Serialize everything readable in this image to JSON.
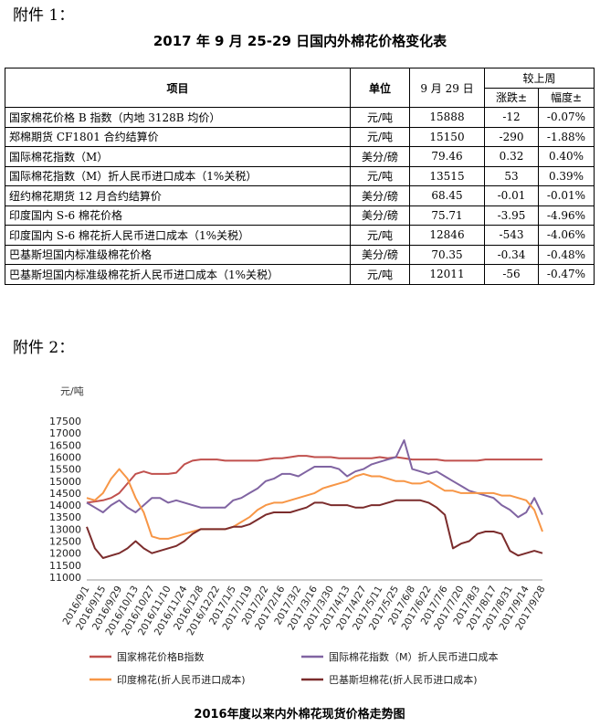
{
  "header1": "附件 1：",
  "table": {
    "title": "2017 年 9 月 25-29 日国内外棉花价格变化表",
    "head": {
      "item": "项目",
      "unit": "单位",
      "date": "9 月 29 日",
      "group": "较上周",
      "change": "涨跌±",
      "pct": "幅度±"
    },
    "rows": [
      [
        "国家棉花价格 B 指数（内地 3128B 均价）",
        "元/吨",
        "15888",
        "-12",
        "-0.07%"
      ],
      [
        "郑棉期货 CF1801 合约结算价",
        "元/吨",
        "15150",
        "-290",
        "-1.88%"
      ],
      [
        "国际棉花指数（M）",
        "美分/磅",
        "79.46",
        "0.32",
        "0.40%"
      ],
      [
        "国际棉花指数（M）折人民币进口成本（1%关税）",
        "元/吨",
        "13515",
        "53",
        "0.39%"
      ],
      [
        "纽约棉花期货 12 月合约结算价",
        "美分/磅",
        "68.45",
        "-0.01",
        "-0.01%"
      ],
      [
        "印度国内 S-6 棉花价格",
        "美分/磅",
        "75.71",
        "-3.95",
        "-4.96%"
      ],
      [
        "印度国内 S-6 棉花折人民币进口成本（1%关税）",
        "元/吨",
        "12846",
        "-543",
        "-4.06%"
      ],
      [
        "巴基斯坦国内标准级棉花价格",
        "美分/磅",
        "70.35",
        "-0.34",
        "-0.48%"
      ],
      [
        "巴基斯坦国内标准级棉花折人民币进口成本（1%关税）",
        "元/吨",
        "12011",
        "-56",
        "-0.47%"
      ]
    ]
  },
  "header2": "附件 2：",
  "chart_data": {
    "type": "line",
    "title": "2016年度以来内外棉花现货价格走势图",
    "y_label": "元/吨",
    "ylim": [
      11000,
      17500
    ],
    "yticks": [
      11000,
      11500,
      12000,
      12500,
      13000,
      13500,
      14000,
      14500,
      15000,
      15500,
      16000,
      16500,
      17000,
      17500
    ],
    "grid": false,
    "categories": [
      "2016/9/1",
      null,
      "2016/9/15",
      null,
      "2016/9/29",
      null,
      "2016/10/13",
      null,
      "2016/10/27",
      null,
      "2016/11/10",
      null,
      "2016/11/24",
      null,
      "2016/12/8",
      null,
      "2016/12/22",
      null,
      "2017/1/5",
      null,
      "2017/1/19",
      null,
      "2017/2/2",
      null,
      "2017/2/16",
      null,
      "2017/3/2",
      null,
      "2017/3/16",
      null,
      "2017/3/30",
      null,
      "2017/4/13",
      null,
      "2017/4/27",
      null,
      "2017/5/11",
      null,
      "2017/5/25",
      null,
      "2017/6/8",
      null,
      "2017/6/22",
      null,
      "2017/7/6",
      null,
      "2017/7/20",
      null,
      "2017/8/3",
      null,
      "2017/8/17",
      null,
      "2017/8/31",
      null,
      "2017/9/14",
      null,
      "2017/9/28"
    ],
    "series": [
      {
        "name": "国家棉花价格B指数",
        "color": "#c0504d",
        "values": [
          14100,
          14150,
          14200,
          14300,
          14500,
          14900,
          15300,
          15400,
          15300,
          15300,
          15300,
          15350,
          15700,
          15850,
          15900,
          15900,
          15900,
          15850,
          15850,
          15850,
          15850,
          15850,
          15900,
          15950,
          15950,
          16000,
          16050,
          16050,
          16000,
          16000,
          16000,
          15950,
          15950,
          15950,
          15950,
          15950,
          16000,
          15950,
          16000,
          15950,
          15900,
          15900,
          15900,
          15900,
          15850,
          15850,
          15850,
          15850,
          15850,
          15900,
          15900,
          15900,
          15900,
          15900,
          15900,
          15900,
          15900
        ]
      },
      {
        "name": "国际棉花指数（M）折人民币进口成本",
        "color": "#8064a2",
        "values": [
          14100,
          13900,
          13700,
          14000,
          14200,
          13900,
          13700,
          14000,
          14300,
          14300,
          14100,
          14200,
          14100,
          14000,
          13900,
          13900,
          13900,
          13900,
          14200,
          14300,
          14500,
          14700,
          15000,
          15100,
          15300,
          15300,
          15200,
          15400,
          15600,
          15600,
          15600,
          15500,
          15200,
          15400,
          15500,
          15700,
          15800,
          15900,
          16000,
          16700,
          15500,
          15400,
          15300,
          15400,
          15200,
          15000,
          14800,
          14600,
          14500,
          14400,
          14300,
          14000,
          13800,
          13500,
          13700,
          14300,
          13600
        ]
      },
      {
        "name": "印度棉花(折人民币进口成本)",
        "color": "#f79646",
        "values": [
          14300,
          14200,
          14500,
          15100,
          15500,
          15100,
          14300,
          13700,
          12700,
          12600,
          12600,
          12700,
          12800,
          12900,
          13000,
          13000,
          13000,
          13000,
          13100,
          13300,
          13500,
          13800,
          14000,
          14100,
          14100,
          14200,
          14300,
          14400,
          14500,
          14700,
          14800,
          14900,
          15000,
          15200,
          15300,
          15200,
          15200,
          15100,
          15000,
          15000,
          14900,
          14900,
          15000,
          14800,
          14600,
          14600,
          14500,
          14500,
          14500,
          14500,
          14500,
          14400,
          14400,
          14300,
          14200,
          13800,
          12900
        ]
      },
      {
        "name": "巴基斯坦棉花(折人民币进口成本)",
        "color": "#7b2c2c",
        "values": [
          13100,
          12200,
          11800,
          11900,
          12000,
          12200,
          12500,
          12200,
          12000,
          12100,
          12200,
          12300,
          12500,
          12800,
          13000,
          13000,
          13000,
          13000,
          13100,
          13100,
          13200,
          13400,
          13600,
          13700,
          13700,
          13700,
          13800,
          13900,
          14100,
          14100,
          14000,
          14000,
          14000,
          13900,
          13900,
          14000,
          14000,
          14100,
          14200,
          14200,
          14200,
          14200,
          14100,
          13900,
          13600,
          12200,
          12400,
          12500,
          12800,
          12900,
          12900,
          12800,
          12100,
          11900,
          12000,
          12100,
          12000
        ]
      }
    ]
  }
}
